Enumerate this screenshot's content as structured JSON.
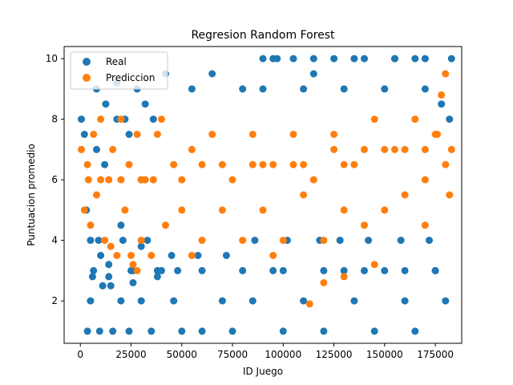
{
  "chart_data": {
    "type": "scatter",
    "title": "Regresion Random Forest",
    "xlabel": "ID Juego",
    "ylabel": "Puntuacion promedio",
    "xlim": [
      -8000,
      188000
    ],
    "ylim": [
      0.6,
      10.4
    ],
    "xticks": [
      0,
      25000,
      50000,
      75000,
      100000,
      125000,
      150000,
      175000
    ],
    "yticks": [
      2,
      4,
      6,
      8,
      10
    ],
    "grid": false,
    "legend_position": "top-left",
    "series": [
      {
        "name": "Real",
        "color": "#1f77b4",
        "x": [
          500,
          2000,
          3500,
          5000,
          6500,
          8000,
          9500,
          11000,
          12500,
          14000,
          16000,
          18000,
          20000,
          22000,
          24000,
          26000,
          28000,
          30000,
          32000,
          35000,
          38000,
          42000,
          46000,
          50000,
          55000,
          60000,
          65000,
          70000,
          75000,
          80000,
          85000,
          90000,
          95000,
          100000,
          105000,
          110000,
          115000,
          120000,
          125000,
          130000,
          135000,
          140000,
          145000,
          150000,
          155000,
          160000,
          165000,
          170000,
          175000,
          180000,
          183000,
          5000,
          10000,
          15000,
          20000,
          25000,
          30000,
          40000,
          60000,
          80000,
          100000,
          120000,
          140000,
          160000,
          175000,
          3000,
          8000,
          12000,
          18000,
          24000,
          30000,
          36000,
          90000,
          110000,
          130000,
          150000,
          170000,
          178000,
          182000,
          95000,
          97000,
          115000,
          135000,
          155000,
          165000,
          9000,
          21000,
          33000,
          45000,
          58000,
          72000,
          86000,
          102000,
          118000,
          128000,
          142000,
          158000,
          172000,
          6000,
          14000,
          26000,
          38000,
          48000
        ],
        "y": [
          8.0,
          7.5,
          1.0,
          2.0,
          3.0,
          9.0,
          1.0,
          2.5,
          8.5,
          3.2,
          1.0,
          9.2,
          2.0,
          8.0,
          1.0,
          3.0,
          9.0,
          2.0,
          8.5,
          1.0,
          3.0,
          9.5,
          2.0,
          1.0,
          9.0,
          1.0,
          9.5,
          2.0,
          1.0,
          9.0,
          2.0,
          10.0,
          3.0,
          1.0,
          10.0,
          2.0,
          9.5,
          1.0,
          10.0,
          3.0,
          2.0,
          10.0,
          1.0,
          3.0,
          10.0,
          2.0,
          1.0,
          10.0,
          3.0,
          2.0,
          10.0,
          4.0,
          3.5,
          2.5,
          4.5,
          3.0,
          3.8,
          3.0,
          3.0,
          3.0,
          3.0,
          3.0,
          3.0,
          3.0,
          3.0,
          5.0,
          7.0,
          6.5,
          8.0,
          7.5,
          6.0,
          8.0,
          9.0,
          9.0,
          9.0,
          9.0,
          9.0,
          8.5,
          8.0,
          10.0,
          10.0,
          10.0,
          10.0,
          10.0,
          10.0,
          4.0,
          4.0,
          4.0,
          3.5,
          3.5,
          3.5,
          4.0,
          4.0,
          4.0,
          4.0,
          4.0,
          4.0,
          4.0,
          2.8,
          2.8,
          2.6,
          2.8,
          3.0
        ]
      },
      {
        "name": "Prediccion",
        "color": "#ff7f0e",
        "x": [
          500,
          2000,
          3500,
          5000,
          6500,
          8000,
          10000,
          12000,
          14000,
          16000,
          18000,
          20000,
          22000,
          24000,
          26000,
          28000,
          30000,
          32000,
          35000,
          38000,
          42000,
          46000,
          50000,
          55000,
          60000,
          65000,
          70000,
          75000,
          80000,
          85000,
          90000,
          95000,
          100000,
          105000,
          110000,
          115000,
          120000,
          125000,
          130000,
          135000,
          140000,
          145000,
          150000,
          155000,
          160000,
          165000,
          170000,
          175000,
          180000,
          183000,
          15000,
          25000,
          28000,
          40000,
          55000,
          95000,
          113000,
          120000,
          130000,
          145000,
          170000,
          178000,
          180000,
          182000,
          10000,
          30000,
          50000,
          70000,
          90000,
          110000,
          130000,
          150000,
          170000,
          4000,
          20000,
          36000,
          60000,
          85000,
          105000,
          125000,
          140000,
          160000,
          176000
        ],
        "y": [
          7.0,
          5.0,
          6.5,
          4.5,
          7.5,
          5.5,
          8.0,
          4.0,
          6.0,
          7.0,
          3.5,
          8.0,
          5.0,
          6.5,
          3.2,
          7.5,
          4.0,
          6.0,
          3.5,
          7.5,
          4.5,
          6.5,
          5.0,
          7.0,
          4.0,
          7.5,
          5.0,
          6.0,
          4.0,
          7.5,
          5.0,
          6.5,
          4.0,
          7.5,
          5.5,
          6.0,
          4.0,
          7.5,
          5.0,
          6.5,
          4.5,
          8.0,
          5.0,
          7.0,
          5.5,
          8.0,
          6.0,
          7.5,
          6.5,
          7.0,
          3.8,
          3.5,
          3.0,
          8.0,
          3.5,
          3.5,
          1.9,
          2.6,
          2.8,
          3.2,
          4.5,
          8.8,
          9.5,
          5.5,
          6.0,
          6.0,
          6.0,
          6.5,
          6.5,
          6.5,
          6.5,
          7.0,
          7.0,
          6.0,
          6.0,
          6.0,
          6.5,
          6.5,
          6.5,
          7.0,
          7.0,
          7.0,
          7.5
        ]
      }
    ]
  }
}
